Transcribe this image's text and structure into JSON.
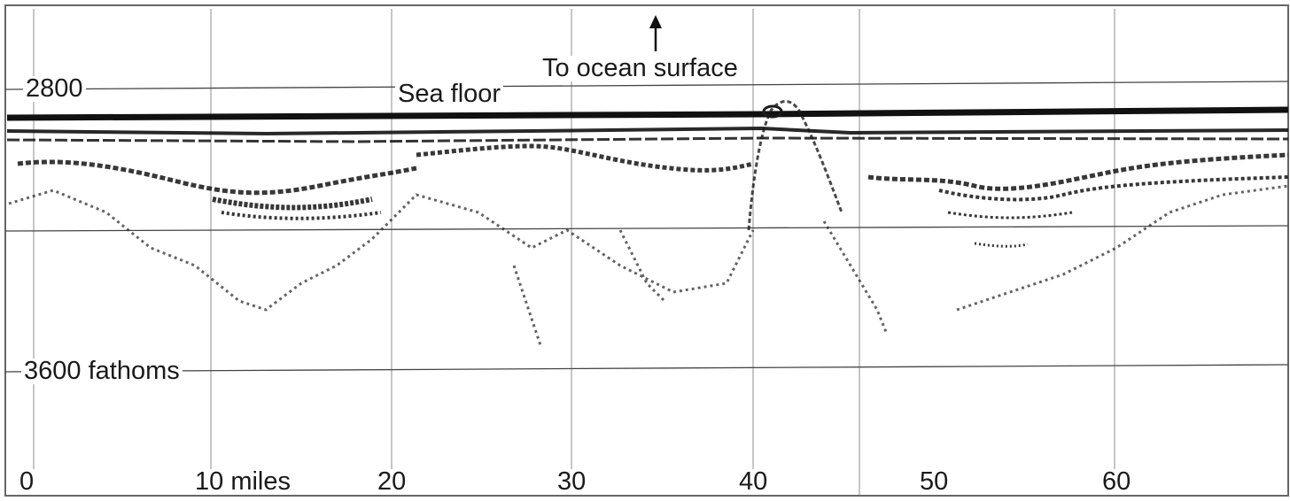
{
  "figure": {
    "depth_labels": {
      "top": "2800",
      "bottom": "3600 fathoms"
    },
    "annotations": {
      "surface": "To ocean surface",
      "seafloor": "Sea floor"
    },
    "distance_ticks": [
      "0",
      "10 miles",
      "20",
      "30",
      "40",
      "50",
      "60"
    ],
    "colors": {
      "ink": "#1a1a1a",
      "paper": "#ffffff",
      "grid": "#555555"
    }
  }
}
